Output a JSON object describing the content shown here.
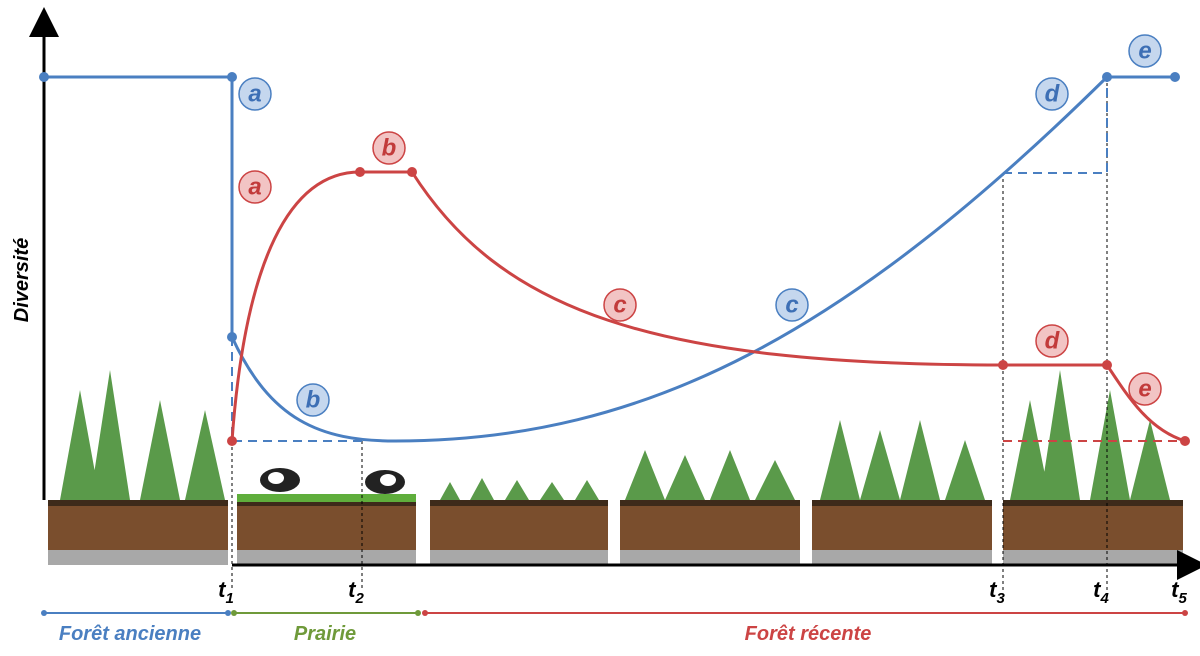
{
  "axis": {
    "y_label": "Diversité"
  },
  "time_markers": [
    {
      "base": "t",
      "sub": "1"
    },
    {
      "base": "t",
      "sub": "2"
    },
    {
      "base": "t",
      "sub": "3"
    },
    {
      "base": "t",
      "sub": "4"
    },
    {
      "base": "t",
      "sub": "5"
    }
  ],
  "phases": [
    {
      "label": "Forêt ancienne"
    },
    {
      "label": "Prairie"
    },
    {
      "label": "Forêt récente"
    }
  ],
  "blue_curve": {
    "labels": [
      "a",
      "b",
      "c",
      "d",
      "e"
    ]
  },
  "red_curve": {
    "labels": [
      "a",
      "b",
      "c",
      "d",
      "e"
    ]
  }
}
